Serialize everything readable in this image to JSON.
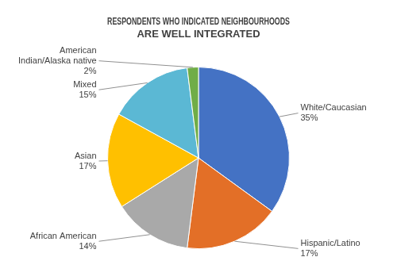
{
  "chart_data": {
    "type": "pie",
    "title": "RESPONDENTS WHO INDICATED NEIGHBOURHOODS\nARE WELL INTEGRATED",
    "categories": [
      "White/Caucasian",
      "Hispanic/Latino",
      "African American",
      "Asian",
      "Mixed",
      "American\nIndian/Alaska native"
    ],
    "values": [
      35,
      17,
      14,
      17,
      15,
      2
    ],
    "value_labels": [
      "35%",
      "17%",
      "14%",
      "17%",
      "15%",
      "2%"
    ],
    "colors": [
      "#4472C4",
      "#E36F27",
      "#A9A9A9",
      "#FFC000",
      "#5BB8D4",
      "#70AD47"
    ],
    "data_labels": true
  }
}
